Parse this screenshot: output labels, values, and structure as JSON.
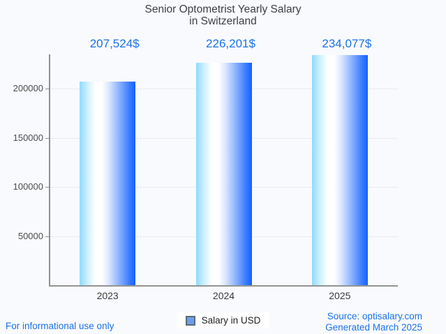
{
  "title": {
    "line1": "Senior Optometrist Yearly Salary",
    "line2": "in Switzerland"
  },
  "chart_data": {
    "type": "bar",
    "title": "Senior Optometrist Yearly Salary in Switzerland",
    "categories": [
      "2023",
      "2024",
      "2025"
    ],
    "values": [
      207524,
      226201,
      234077
    ],
    "value_labels": [
      "207,524$",
      "226,201$",
      "234,077$"
    ],
    "series": [
      {
        "name": "Salary in USD",
        "values": [
          207524,
          226201,
          234077
        ]
      }
    ],
    "xlabel": "",
    "ylabel": "",
    "y_ticks": [
      50000,
      100000,
      150000,
      200000
    ],
    "ylim": [
      0,
      235000
    ],
    "grid": true,
    "legend_position": "bottom"
  },
  "legend": {
    "label": "Salary in USD",
    "marker_color": "#6d9eeb"
  },
  "footer": {
    "left": "For informational use only",
    "source": "Source: optisalary.com",
    "generated": "Generated March 2025"
  },
  "colors": {
    "accent_blue": "#1a73e8",
    "bar_gradient_left": "#8edaff",
    "bar_gradient_right": "#1561ff",
    "background": "#f9fafe",
    "title_text": "#3c4043"
  }
}
